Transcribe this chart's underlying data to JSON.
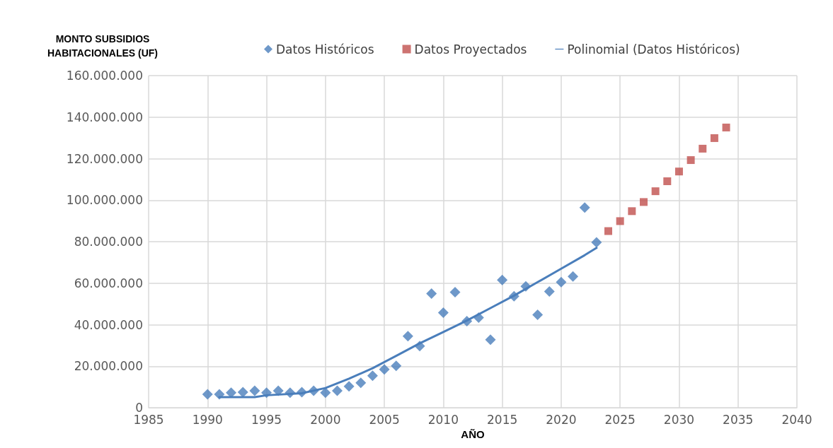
{
  "chart_data": {
    "type": "scatter",
    "xlabel": "AÑO",
    "ylabel": "MONTO SUBSIDIOS\nHABITACIONALES (UF)",
    "xlim": [
      1985,
      2040
    ],
    "xticks": [
      1985,
      1990,
      1995,
      2000,
      2005,
      2010,
      2015,
      2020,
      2025,
      2030,
      2035,
      2040
    ],
    "ylim": [
      0,
      160000000
    ],
    "yticks": [
      0,
      {
        "value": 20000000,
        "label": "20.000.000"
      },
      {
        "value": 40000000,
        "label": "40.000.000"
      },
      {
        "value": 60000000,
        "label": "60.000.000"
      },
      {
        "value": 80000000,
        "label": "80.000.000"
      },
      {
        "value": 100000000,
        "label": "100.000.000"
      },
      {
        "value": 120000000,
        "label": "120.000.000"
      },
      {
        "value": 140000000,
        "label": "140.000.000"
      },
      {
        "value": 160000000,
        "label": "160.000.000"
      }
    ],
    "grid": true,
    "legend": "top",
    "series": [
      {
        "name": "Datos Históricos",
        "marker": "diamond",
        "color": "#4a7ebb",
        "x": [
          1990,
          1991,
          1992,
          1993,
          1994,
          1995,
          1996,
          1997,
          1998,
          1999,
          2000,
          2001,
          2002,
          2003,
          2004,
          2005,
          2006,
          2007,
          2008,
          2009,
          2010,
          2011,
          2012,
          2013,
          2014,
          2015,
          2016,
          2017,
          2018,
          2019,
          2020,
          2021,
          2022,
          2023
        ],
        "values": [
          6500000,
          6500000,
          7200000,
          7500000,
          8200000,
          7200000,
          8200000,
          7200000,
          7500000,
          8200000,
          7200000,
          8200000,
          10300000,
          12000000,
          15400000,
          18500000,
          20200000,
          34500000,
          29700000,
          55000000,
          45800000,
          55700000,
          41700000,
          43400000,
          32800000,
          61500000,
          53700000,
          58500000,
          44800000,
          56000000,
          60500000,
          63200000,
          96400000,
          79700000
        ]
      },
      {
        "name": "Datos Proyectados",
        "marker": "square",
        "color": "#c0504d",
        "x": [
          2024,
          2025,
          2026,
          2027,
          2028,
          2029,
          2030,
          2031,
          2032,
          2033,
          2034
        ],
        "values": [
          85100000,
          89900000,
          94700000,
          99100000,
          104300000,
          109100000,
          113800000,
          119300000,
          124800000,
          129900000,
          135000000
        ]
      },
      {
        "name": "Polinomial (Datos Históricos)",
        "type": "line",
        "marker": "none",
        "line_style": "solid",
        "color": "#4a7ebb",
        "x": [
          1991,
          1994,
          1995,
          1998,
          2000,
          2002,
          2004,
          2006,
          2008,
          2010,
          2012,
          2014,
          2016,
          2018,
          2020,
          2022,
          2023
        ],
        "values": [
          5100000,
          5100000,
          6000000,
          7000000,
          9500000,
          14000000,
          19000000,
          25000000,
          31000000,
          36500000,
          42000000,
          48000000,
          54000000,
          60500000,
          67000000,
          73500000,
          77000000
        ]
      }
    ]
  }
}
